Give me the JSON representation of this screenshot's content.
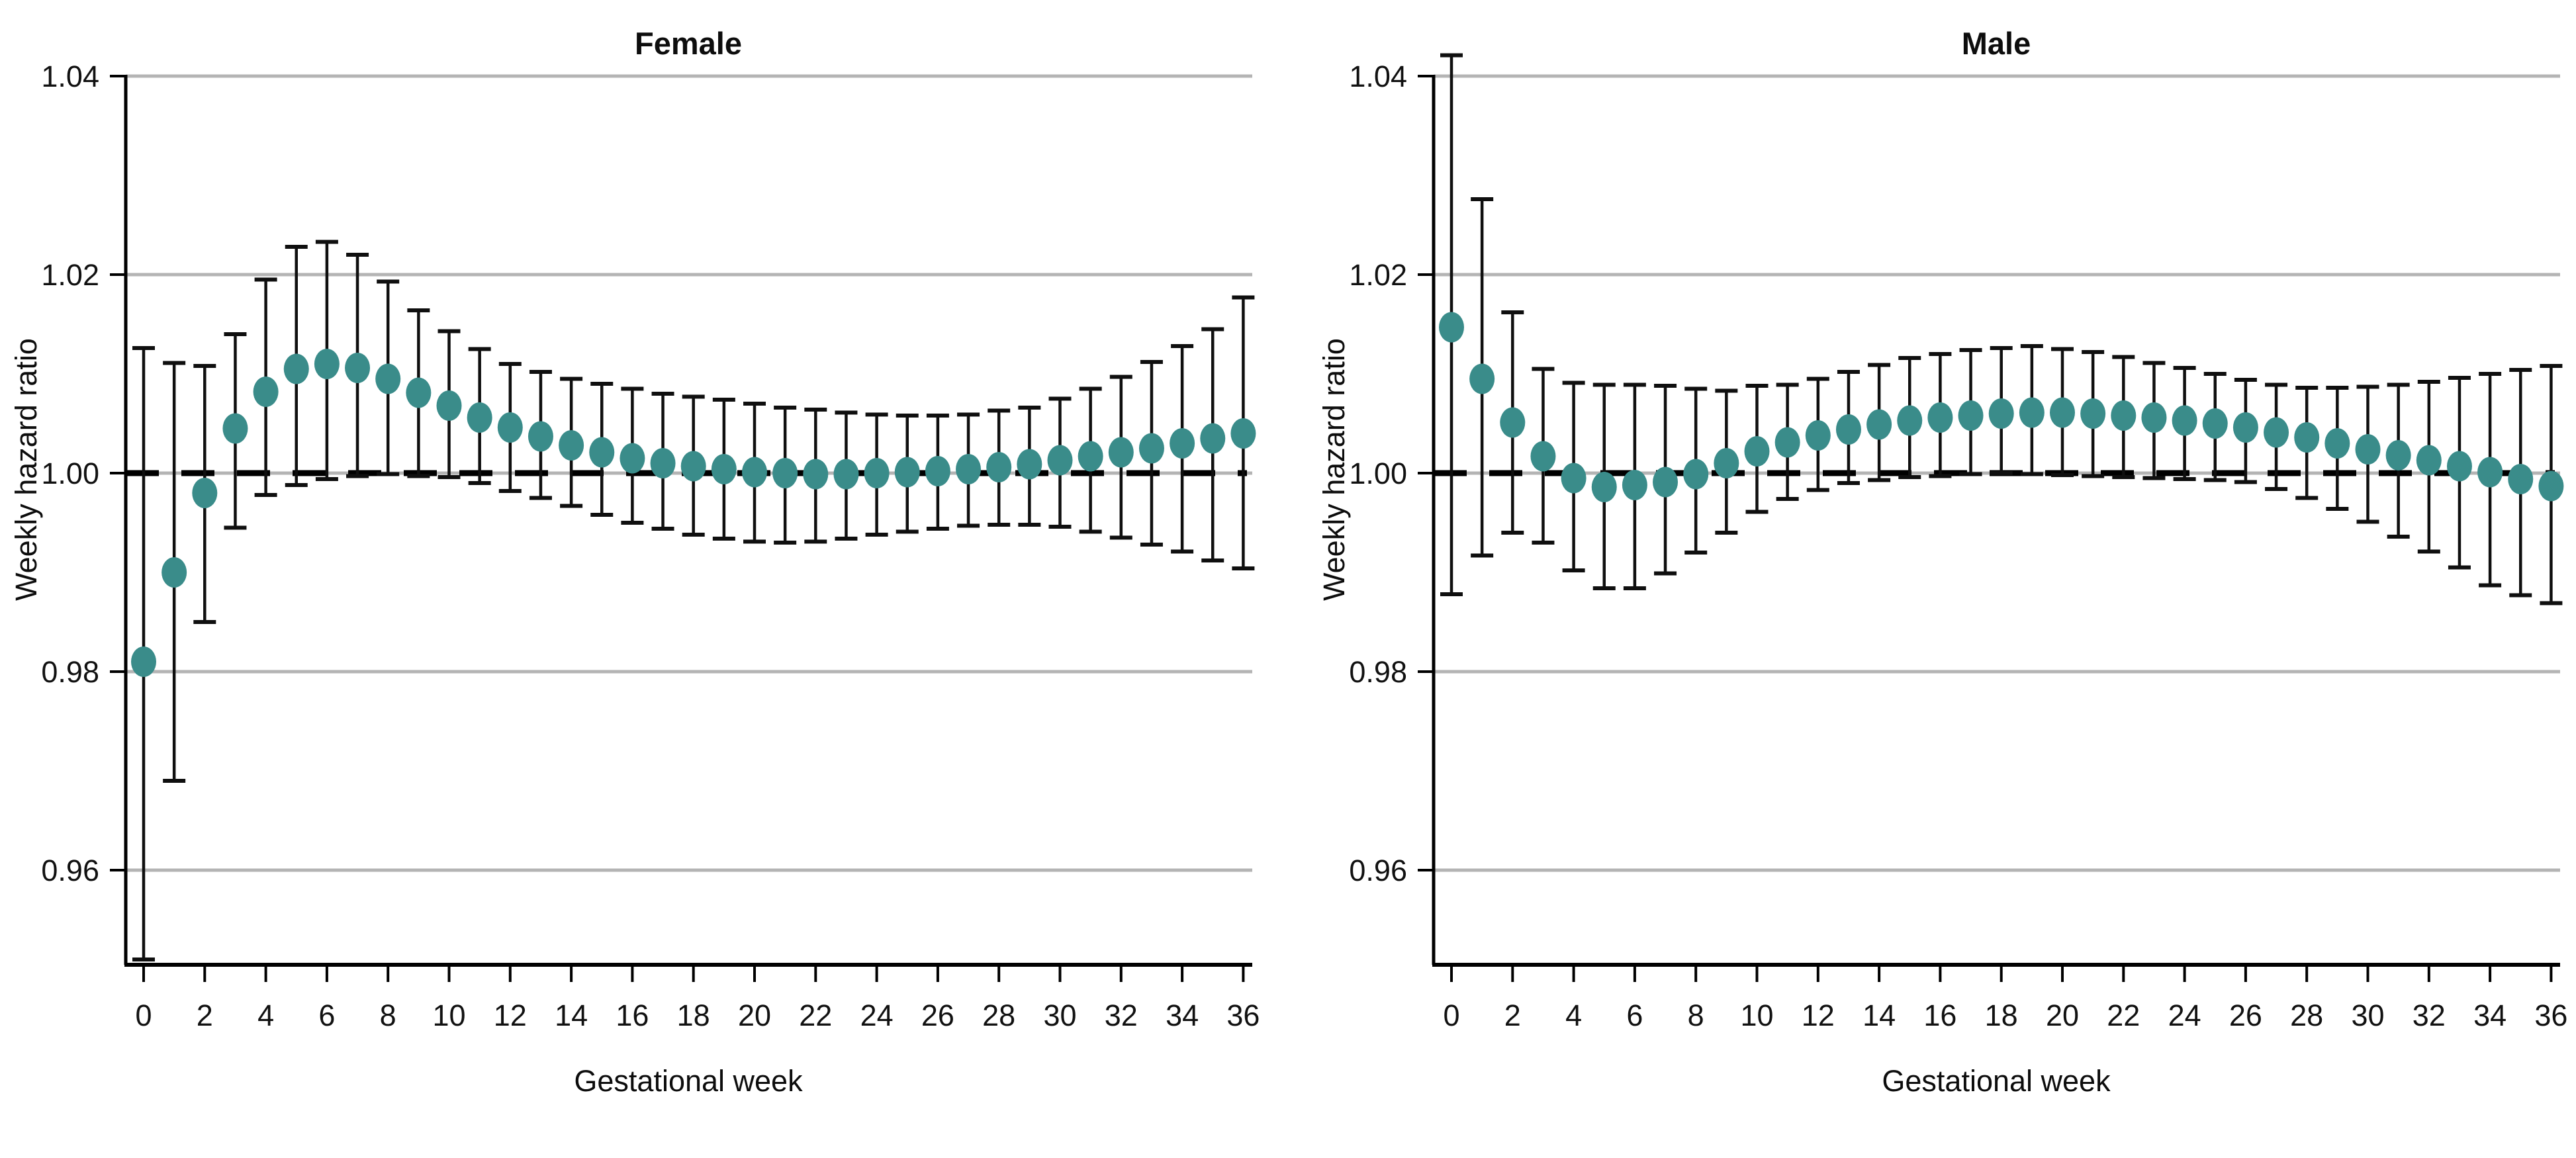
{
  "figure": {
    "background": "#ffffff"
  },
  "colors": {
    "marker": "#3A8C8A",
    "error_bar": "#0f0f0f",
    "gridline": "#b4b4b4",
    "reference_line": "#000000",
    "axis": "#000000",
    "text": "#111111"
  },
  "chart_data": [
    {
      "type": "scatter",
      "panel": "left",
      "title": "Female",
      "xlabel": "Gestational week",
      "ylabel": "Weekly hazard ratio",
      "ylim": [
        0.945,
        1.045
      ],
      "ytick_labels": [
        "1.04",
        "1.02",
        "1.00",
        "0.98",
        "0.96"
      ],
      "ytick_values": [
        1.04,
        1.02,
        1.0,
        0.98,
        0.96
      ],
      "xticks": [
        0,
        2,
        4,
        6,
        8,
        10,
        12,
        14,
        16,
        18,
        20,
        22,
        24,
        26,
        28,
        30,
        32,
        34,
        36
      ],
      "reference_line": 1.0,
      "grid": true,
      "x": [
        0,
        1,
        2,
        3,
        4,
        5,
        6,
        7,
        8,
        9,
        10,
        11,
        12,
        13,
        14,
        15,
        16,
        17,
        18,
        19,
        20,
        21,
        22,
        23,
        24,
        25,
        26,
        27,
        28,
        29,
        30,
        31,
        32,
        33,
        34,
        35,
        36
      ],
      "series": [
        {
          "name": "Weekly hazard ratio",
          "values": [
            0.981,
            0.99,
            0.998,
            1.0045,
            1.0082,
            1.0105,
            1.011,
            1.0106,
            1.0095,
            1.0081,
            1.0068,
            1.0056,
            1.0046,
            1.0037,
            1.0028,
            1.0021,
            1.0015,
            1.001,
            1.0007,
            1.0004,
            1.0001,
            1.0,
            0.9999,
            0.9999,
            1.0,
            1.0001,
            1.0002,
            1.0004,
            1.0006,
            1.0009,
            1.0013,
            1.0017,
            1.0021,
            1.0025,
            1.003,
            1.0035,
            1.004
          ]
        },
        {
          "name": "95% CI lower",
          "values": [
            0.951,
            0.969,
            0.985,
            0.9945,
            0.9978,
            0.9988,
            0.9994,
            0.9997,
            0.9999,
            0.9997,
            0.9996,
            0.999,
            0.9982,
            0.9975,
            0.9967,
            0.9958,
            0.995,
            0.9944,
            0.9938,
            0.9934,
            0.9931,
            0.993,
            0.9931,
            0.9934,
            0.9938,
            0.9941,
            0.9944,
            0.9947,
            0.9948,
            0.9948,
            0.9946,
            0.9941,
            0.9935,
            0.9928,
            0.9921,
            0.9912,
            0.9904
          ]
        },
        {
          "name": "95% CI upper",
          "values": [
            1.0126,
            1.0111,
            1.0108,
            1.014,
            1.0195,
            1.0228,
            1.0233,
            1.022,
            1.0193,
            1.0164,
            1.0143,
            1.0125,
            1.011,
            1.0102,
            1.0095,
            1.009,
            1.0085,
            1.008,
            1.0077,
            1.0074,
            1.007,
            1.0066,
            1.0064,
            1.0061,
            1.0059,
            1.0058,
            1.0058,
            1.0059,
            1.0063,
            1.0066,
            1.0075,
            1.0085,
            1.0097,
            1.0112,
            1.0128,
            1.0145,
            1.0177
          ]
        }
      ]
    },
    {
      "type": "scatter",
      "panel": "right",
      "title": "Male",
      "xlabel": "Gestational week",
      "ylabel": "Weekly hazard ratio",
      "ylim": [
        0.945,
        1.045
      ],
      "ytick_labels": [
        "1.04",
        "1.02",
        "1.00",
        "0.98",
        "0.96"
      ],
      "ytick_values": [
        1.04,
        1.02,
        1.0,
        0.98,
        0.96
      ],
      "xticks": [
        0,
        2,
        4,
        6,
        8,
        10,
        12,
        14,
        16,
        18,
        20,
        22,
        24,
        26,
        28,
        30,
        32,
        34,
        36
      ],
      "reference_line": 1.0,
      "grid": true,
      "x": [
        0,
        1,
        2,
        3,
        4,
        5,
        6,
        7,
        8,
        9,
        10,
        11,
        12,
        13,
        14,
        15,
        16,
        17,
        18,
        19,
        20,
        21,
        22,
        23,
        24,
        25,
        26,
        27,
        28,
        29,
        30,
        31,
        32,
        33,
        34,
        35,
        36
      ],
      "series": [
        {
          "name": "Weekly hazard ratio",
          "values": [
            1.0147,
            1.0095,
            1.0051,
            1.0017,
            0.9995,
            0.9986,
            0.9988,
            0.9991,
            0.9999,
            1.001,
            1.0022,
            1.0031,
            1.0038,
            1.0044,
            1.0049,
            1.0053,
            1.0056,
            1.0058,
            1.006,
            1.0061,
            1.0061,
            1.006,
            1.0058,
            1.0056,
            1.0053,
            1.005,
            1.0046,
            1.0041,
            1.0036,
            1.003,
            1.0024,
            1.0018,
            1.0013,
            1.0007,
            1.0001,
            0.9994,
            0.9987
          ]
        },
        {
          "name": "95% CI lower",
          "values": [
            0.9878,
            0.9917,
            0.994,
            0.993,
            0.9902,
            0.9884,
            0.9884,
            0.9899,
            0.992,
            0.994,
            0.9961,
            0.9974,
            0.9983,
            0.999,
            0.9993,
            0.9996,
            0.9997,
            0.9999,
            1.0,
            0.9999,
            0.9998,
            0.9997,
            0.9996,
            0.9995,
            0.9994,
            0.9993,
            0.9991,
            0.9984,
            0.9975,
            0.9964,
            0.9951,
            0.9936,
            0.9921,
            0.9905,
            0.9887,
            0.9877,
            0.9869
          ]
        },
        {
          "name": "95% CI upper",
          "values": [
            1.0421,
            1.0276,
            1.0162,
            1.0105,
            1.0091,
            1.0089,
            1.0089,
            1.0088,
            1.0085,
            1.0083,
            1.0088,
            1.0089,
            1.0095,
            1.0102,
            1.0109,
            1.0116,
            1.012,
            1.0124,
            1.0126,
            1.0128,
            1.0125,
            1.0122,
            1.0117,
            1.0111,
            1.0106,
            1.01,
            1.0094,
            1.0089,
            1.0086,
            1.0086,
            1.0087,
            1.0089,
            1.0092,
            1.0096,
            1.01,
            1.0104,
            1.0108
          ]
        }
      ]
    }
  ]
}
